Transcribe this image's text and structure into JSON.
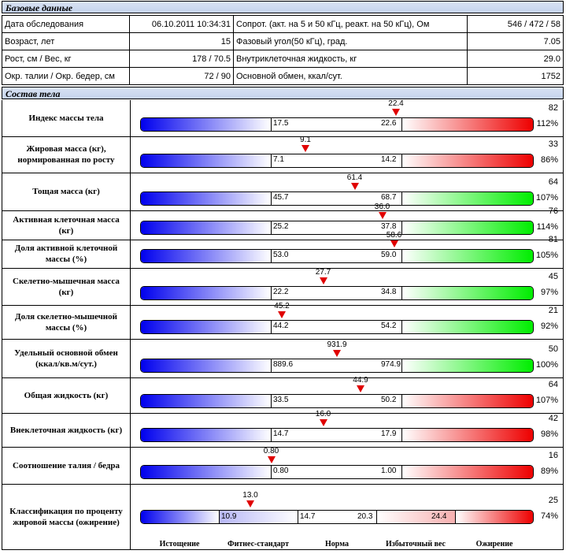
{
  "base": {
    "title": "Базовые данные",
    "rows": [
      {
        "l1": "Дата обследования",
        "v1": "06.10.2011 10:34:31",
        "l2": "Сопрот. (акт. на 5 и 50 кГц, реакт. на 50 кГц), Ом",
        "v2": "546 / 472 / 58"
      },
      {
        "l1": "Возраст, лет",
        "v1": "15",
        "l2": "Фазовый угол(50 кГц), град.",
        "v2": "7.05"
      },
      {
        "l1": "Рост, см / Вес, кг",
        "v1": "178 / 70.5",
        "l2": "Внутриклеточная жидкость, кг",
        "v2": "29.0"
      },
      {
        "l1": "Окр. талии / Окр. бедер, см",
        "v1": "72 / 90",
        "l2": "Основной обмен, ккал/сут.",
        "v2": "1752"
      }
    ]
  },
  "comp": {
    "title": "Состав тела",
    "rows": [
      {
        "label": "Индекс массы тела",
        "low": "17.5",
        "high": "22.6",
        "marker": "22.4",
        "pos": 0.65,
        "value": "82",
        "pct": "112%",
        "hi": "red"
      },
      {
        "label": "Жировая масса (кг), нормированная по росту",
        "low": "7.1",
        "high": "14.2",
        "marker": "9.1",
        "pos": 0.42,
        "value": "33",
        "pct": "86%",
        "hi": "red"
      },
      {
        "label": "Тощая масса (кг)",
        "low": "45.7",
        "high": "68.7",
        "marker": "61.4",
        "pos": 0.545,
        "value": "64",
        "pct": "107%",
        "hi": "green"
      },
      {
        "label": "Активная клеточная масса (кг)",
        "low": "25.2",
        "high": "37.8",
        "marker": "36.0",
        "pos": 0.615,
        "value": "76",
        "pct": "114%",
        "hi": "green"
      },
      {
        "label": "Доля активной клеточной массы (%)",
        "low": "53.0",
        "high": "59.0",
        "marker": "58.6",
        "pos": 0.645,
        "value": "81",
        "pct": "105%",
        "hi": "green"
      },
      {
        "label": "Скелетно-мышечная масса (кг)",
        "low": "22.2",
        "high": "34.8",
        "marker": "27.7",
        "pos": 0.465,
        "value": "45",
        "pct": "97%",
        "hi": "green"
      },
      {
        "label": "Доля скелетно-мышечной массы (%)",
        "low": "44.2",
        "high": "54.2",
        "marker": "45.2",
        "pos": 0.36,
        "value": "21",
        "pct": "92%",
        "hi": "green"
      },
      {
        "label": "Удельный основной обмен (ккал/кв.м/сут.)",
        "low": "889.6",
        "high": "974.9",
        "marker": "931.9",
        "pos": 0.5,
        "value": "50",
        "pct": "100%",
        "hi": "green"
      },
      {
        "label": "Общая жидкость (кг)",
        "low": "33.5",
        "high": "50.2",
        "marker": "44.9",
        "pos": 0.56,
        "value": "64",
        "pct": "107%",
        "hi": "red"
      },
      {
        "label": "Внеклеточная жидкость (кг)",
        "low": "14.7",
        "high": "17.9",
        "marker": "16.0",
        "pos": 0.465,
        "value": "42",
        "pct": "98%",
        "hi": "red"
      },
      {
        "label": "Соотношение талия / бедра",
        "low": "0.80",
        "high": "1.00",
        "marker": "0.80",
        "pos": 0.333,
        "value": "16",
        "pct": "89%",
        "hi": "red"
      }
    ],
    "classification": {
      "label": "Классификация по проценту жировой массы (ожирение)",
      "b1": "10.9",
      "b2": "14.7",
      "b3": "20.3",
      "b4": "24.4",
      "marker": "13.0",
      "pos": 0.28,
      "value": "25",
      "pct": "74%",
      "categories": [
        "Истощение",
        "Фитнес-стандарт",
        "Норма",
        "Избыточный вес",
        "Ожирение"
      ]
    }
  }
}
